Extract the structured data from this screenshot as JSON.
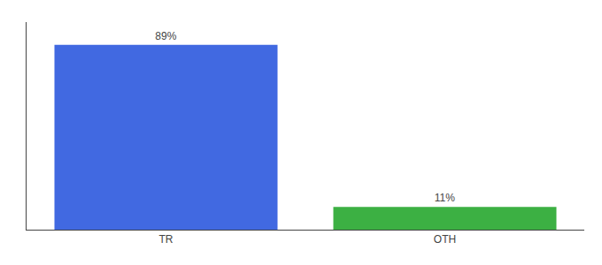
{
  "chart_data": {
    "type": "bar",
    "categories": [
      "TR",
      "OTH"
    ],
    "values": [
      89,
      11
    ],
    "value_labels": [
      "89%",
      "11%"
    ],
    "colors": [
      "#4169e1",
      "#3cb043"
    ],
    "ylim": [
      0,
      100
    ],
    "yticks": [],
    "grid": false,
    "data_labels": true,
    "tick_labels": "x"
  }
}
